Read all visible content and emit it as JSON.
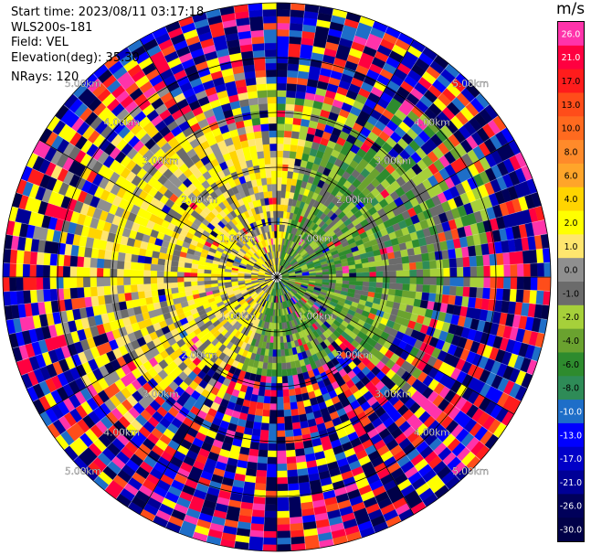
{
  "info": {
    "start_time": "Start time: 2023/08/11 03:17:18",
    "station": "WLS200s-181",
    "field": "Field: VEL",
    "elevation": "Elevation(deg): 35.30",
    "nrays": "NRays: 120"
  },
  "colorbar": {
    "unit": "m/s",
    "bins": [
      {
        "label": "26.0",
        "color": "#ff33aa"
      },
      {
        "label": "21.0",
        "color": "#ff0040"
      },
      {
        "label": "17.0",
        "color": "#ff1c1c"
      },
      {
        "label": "13.0",
        "color": "#ff4d1a"
      },
      {
        "label": "10.0",
        "color": "#ff6a1f"
      },
      {
        "label": "8.0",
        "color": "#ff8a2a"
      },
      {
        "label": "6.0",
        "color": "#ffa52a"
      },
      {
        "label": "4.0",
        "color": "#ffd400"
      },
      {
        "label": "2.0",
        "color": "#ffff00"
      },
      {
        "label": "1.0",
        "color": "#ffe66e"
      },
      {
        "label": "0.0",
        "color": "#8f8f8f"
      },
      {
        "label": "-1.0",
        "color": "#6b6b6b"
      },
      {
        "label": "-2.0",
        "color": "#a6d03a"
      },
      {
        "label": "-4.0",
        "color": "#6aa22f"
      },
      {
        "label": "-6.0",
        "color": "#2e8b2e"
      },
      {
        "label": "-8.0",
        "color": "#2e8b57"
      },
      {
        "label": "-10.0",
        "color": "#1e6ec8"
      },
      {
        "label": "-13.0",
        "color": "#0000ff"
      },
      {
        "label": "-17.0",
        "color": "#0000c8"
      },
      {
        "label": "-21.0",
        "color": "#000096"
      },
      {
        "label": "-26.0",
        "color": "#00005a"
      },
      {
        "label": "-30.0",
        "color": "#000048"
      }
    ]
  },
  "range_rings": [
    "1.00km",
    "2.00km",
    "3.00km",
    "4.00km",
    "5.00km"
  ]
}
